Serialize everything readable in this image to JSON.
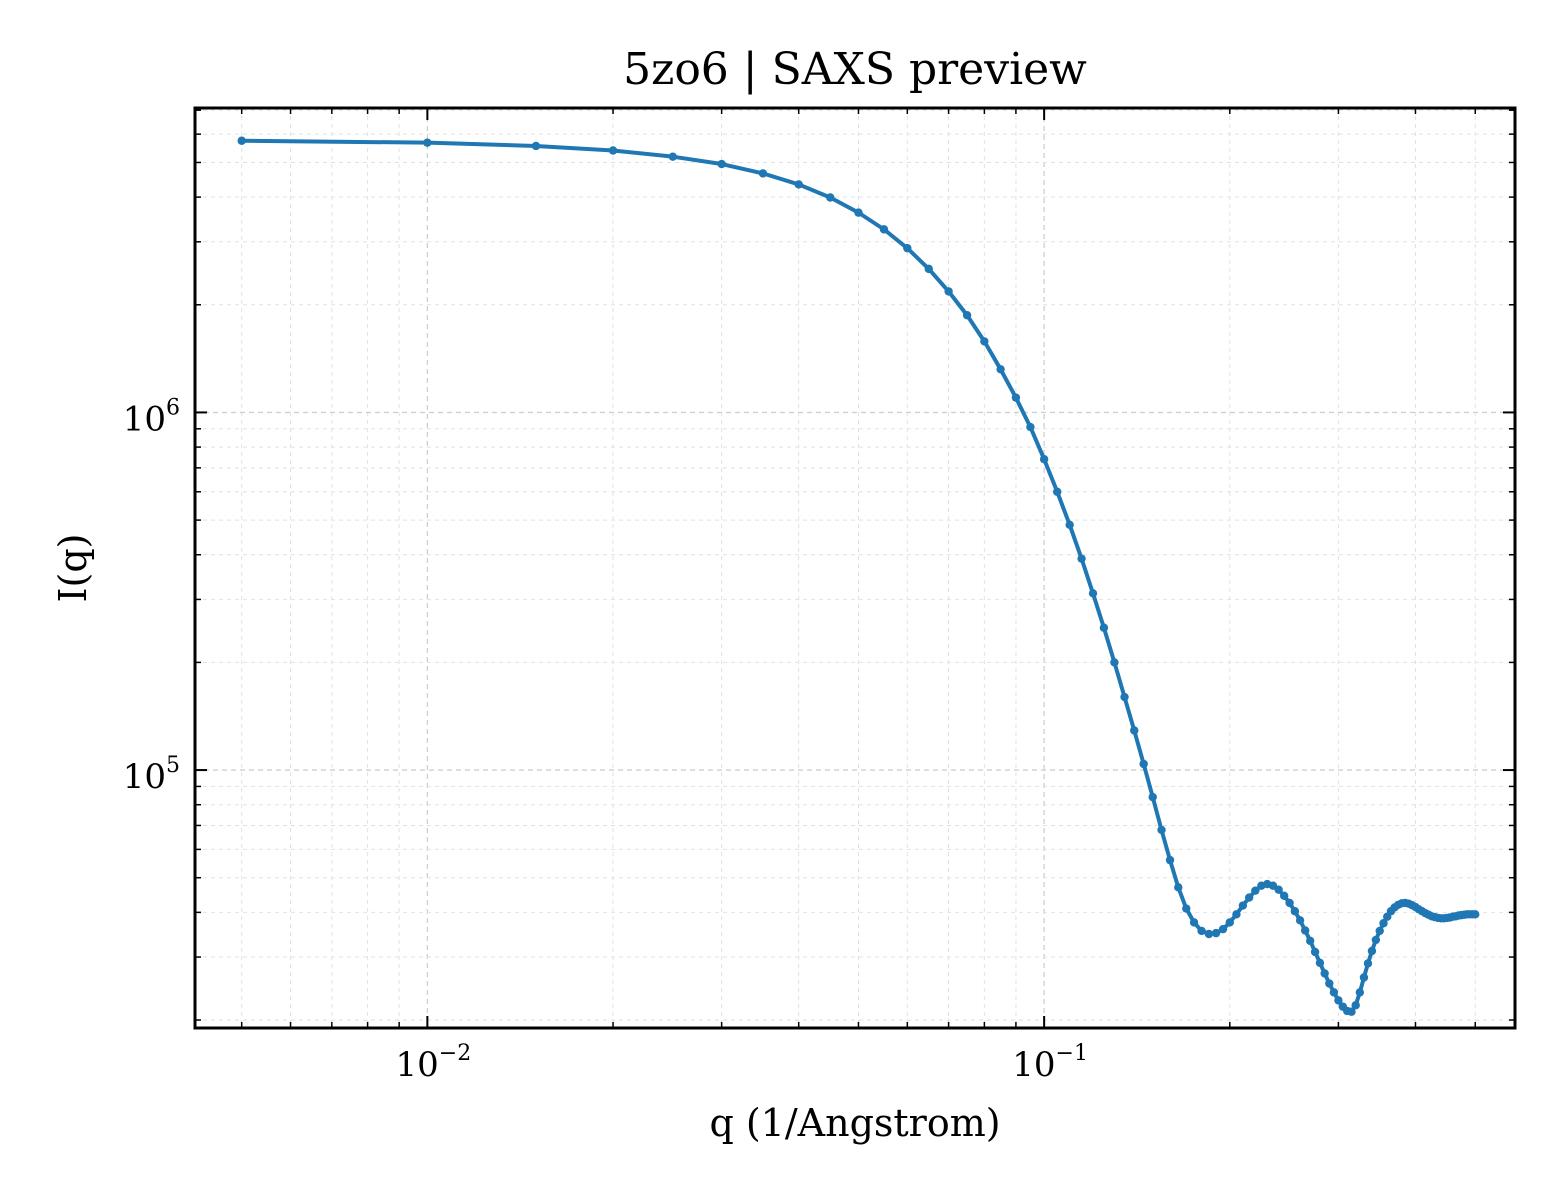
{
  "chart_data": {
    "type": "line",
    "title": "5zo6 | SAXS preview",
    "xlabel": "q (1/Angstrom)",
    "ylabel": "I(q)",
    "xscale": "log",
    "yscale": "log",
    "xlim": [
      0.0042,
      0.58
    ],
    "ylim": [
      19000,
      7100000
    ],
    "grid": true,
    "legend": "none",
    "x_ticks": [
      {
        "base": "10",
        "exp": "−2",
        "value": 0.01
      },
      {
        "base": "10",
        "exp": "−1",
        "value": 0.1
      }
    ],
    "y_ticks": [
      {
        "base": "10",
        "exp": "5",
        "value": 100000
      },
      {
        "base": "10",
        "exp": "6",
        "value": 1000000
      }
    ],
    "series": [
      {
        "color": "#1f77b4",
        "x": [
          0.005,
          0.01,
          0.015,
          0.02,
          0.025,
          0.03,
          0.035,
          0.04,
          0.045,
          0.05,
          0.055,
          0.06,
          0.065,
          0.07,
          0.075,
          0.08,
          0.085,
          0.09,
          0.095,
          0.1,
          0.105,
          0.11,
          0.115,
          0.12,
          0.125,
          0.13,
          0.135,
          0.14,
          0.145,
          0.15,
          0.155,
          0.16,
          0.165,
          0.17,
          0.175,
          0.18,
          0.185,
          0.19,
          0.195,
          0.2,
          0.205,
          0.21,
          0.215,
          0.22,
          0.225,
          0.23,
          0.235,
          0.24,
          0.245,
          0.25,
          0.255,
          0.26,
          0.265,
          0.27,
          0.275,
          0.28,
          0.285,
          0.29,
          0.295,
          0.3,
          0.305,
          0.31,
          0.315,
          0.32,
          0.325,
          0.33,
          0.335,
          0.34,
          0.345,
          0.35,
          0.355,
          0.36,
          0.365,
          0.37,
          0.375,
          0.38,
          0.385,
          0.39,
          0.395,
          0.4,
          0.405,
          0.41,
          0.415,
          0.42,
          0.425,
          0.43,
          0.435,
          0.44,
          0.445,
          0.45,
          0.455,
          0.46,
          0.465,
          0.47,
          0.475,
          0.48,
          0.485,
          0.49,
          0.495,
          0.5
        ],
        "y": [
          5750000,
          5680000,
          5560000,
          5400000,
          5190000,
          4950000,
          4660000,
          4340000,
          3990000,
          3620000,
          3250000,
          2880000,
          2520000,
          2180000,
          1870000,
          1580000,
          1320000,
          1100000,
          910000,
          740000,
          600000,
          485000,
          390000,
          312000,
          250000,
          200000,
          160000,
          129000,
          104000,
          84000,
          68000,
          56000,
          47000,
          41000,
          37500,
          35500,
          34800,
          35000,
          35900,
          37500,
          39500,
          41800,
          44000,
          46000,
          47500,
          48000,
          47500,
          46300,
          44500,
          42500,
          40300,
          38000,
          35600,
          33300,
          31000,
          28900,
          27000,
          25300,
          23900,
          22700,
          21800,
          21200,
          21100,
          22000,
          23900,
          26300,
          28800,
          31200,
          33500,
          35500,
          37300,
          38900,
          40300,
          41300,
          42000,
          42400,
          42500,
          42300,
          41900,
          41400,
          40800,
          40300,
          39800,
          39400,
          39000,
          38800,
          38600,
          38500,
          38500,
          38600,
          38700,
          38900,
          39000,
          39200,
          39300,
          39400,
          39500,
          39500,
          39500,
          39500
        ]
      }
    ]
  }
}
